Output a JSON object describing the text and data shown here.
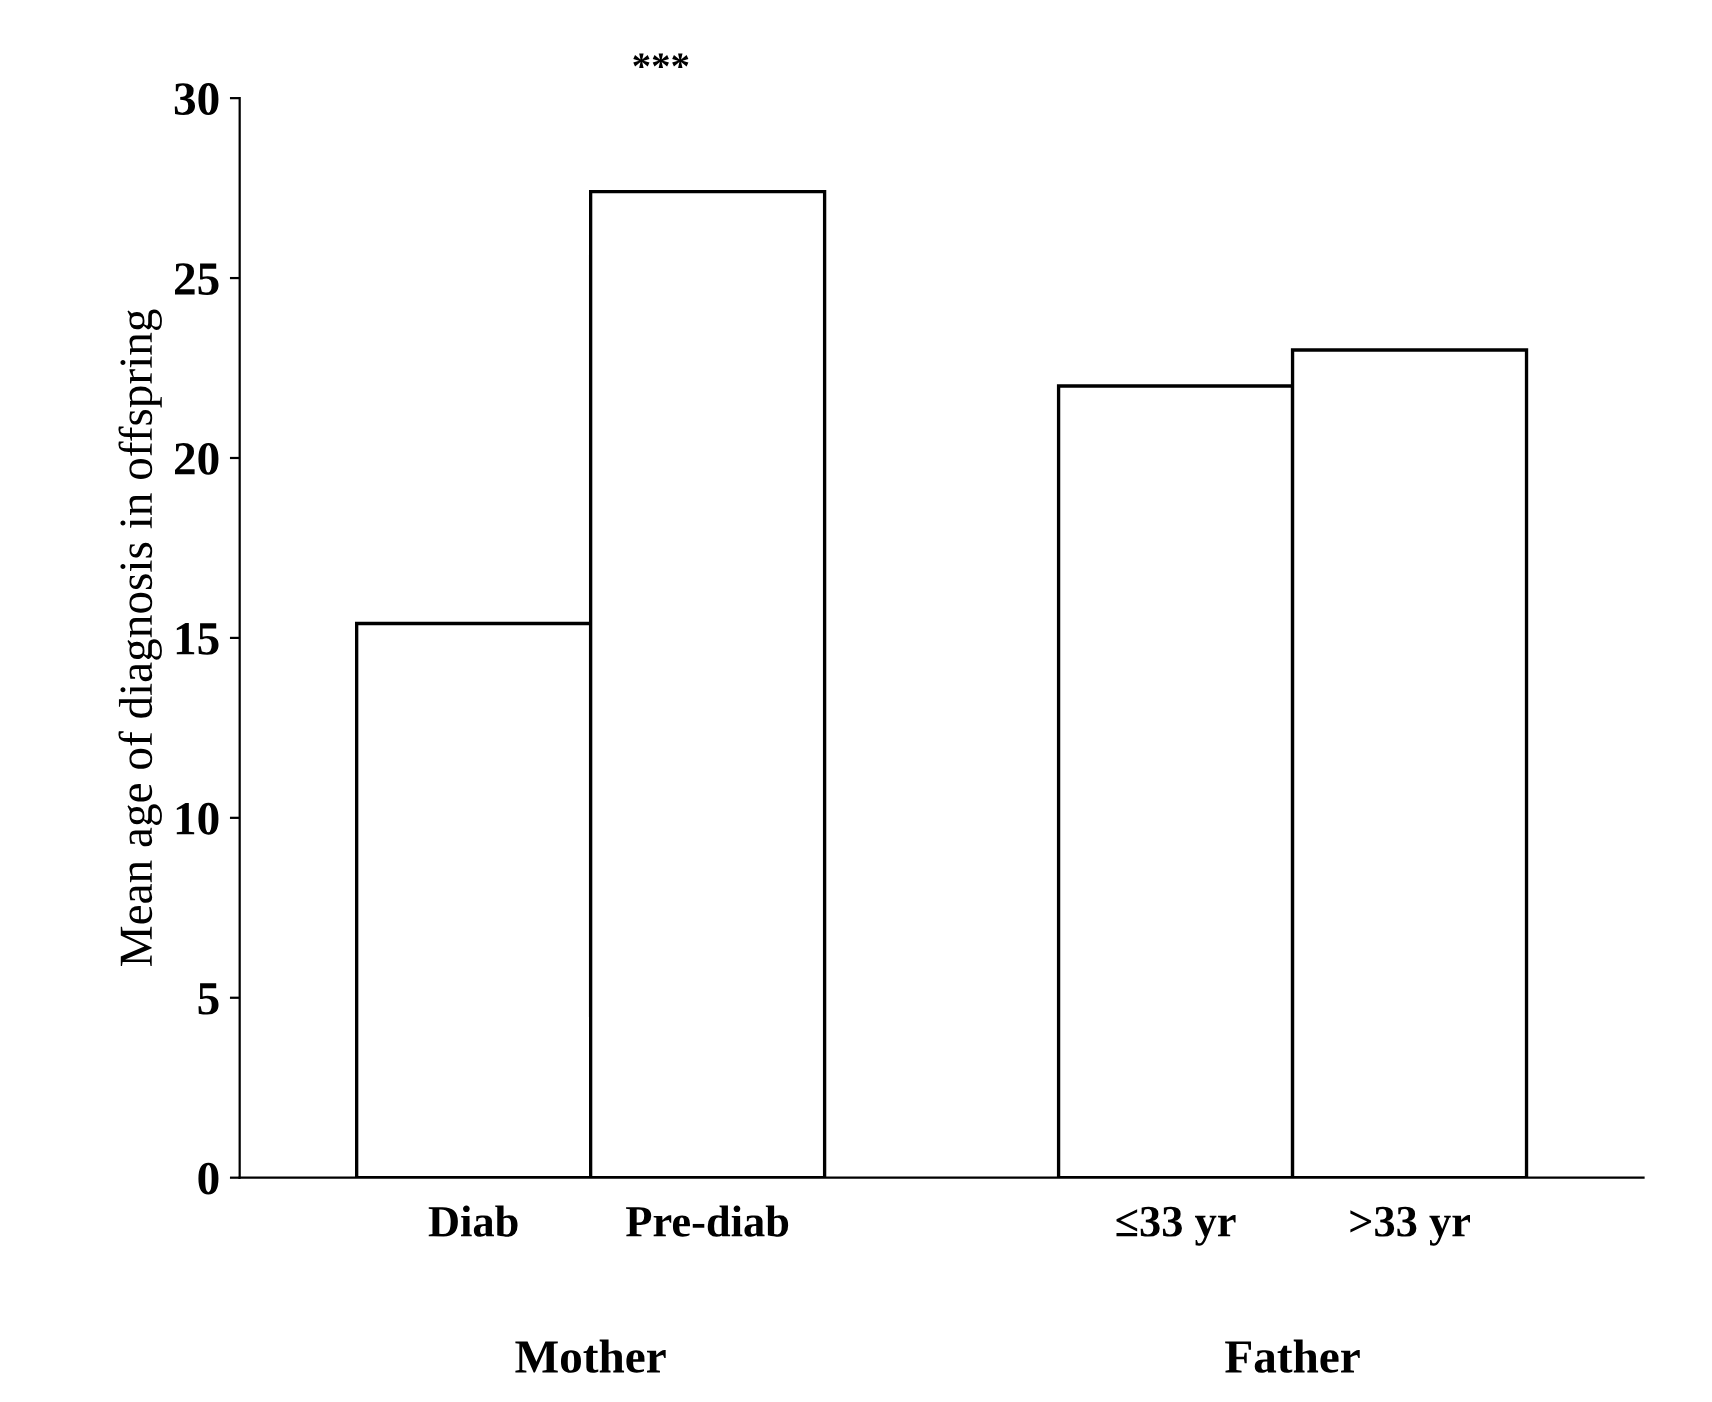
{
  "chart_data": {
    "type": "bar",
    "ylabel": "Mean age of diagnosis in offspring",
    "categories": [
      "Diab",
      "Pre-diab",
      null,
      "≤33 yr",
      ">33 yr"
    ],
    "values": [
      15.4,
      27.4,
      null,
      22.0,
      23.0
    ],
    "color": "#ffffff",
    "ylim": [
      0,
      30
    ],
    "yticks": [
      0,
      5,
      10,
      15,
      20,
      25,
      30
    ],
    "grid": false,
    "annotations": [
      "***",
      "Mother",
      "Father"
    ]
  }
}
